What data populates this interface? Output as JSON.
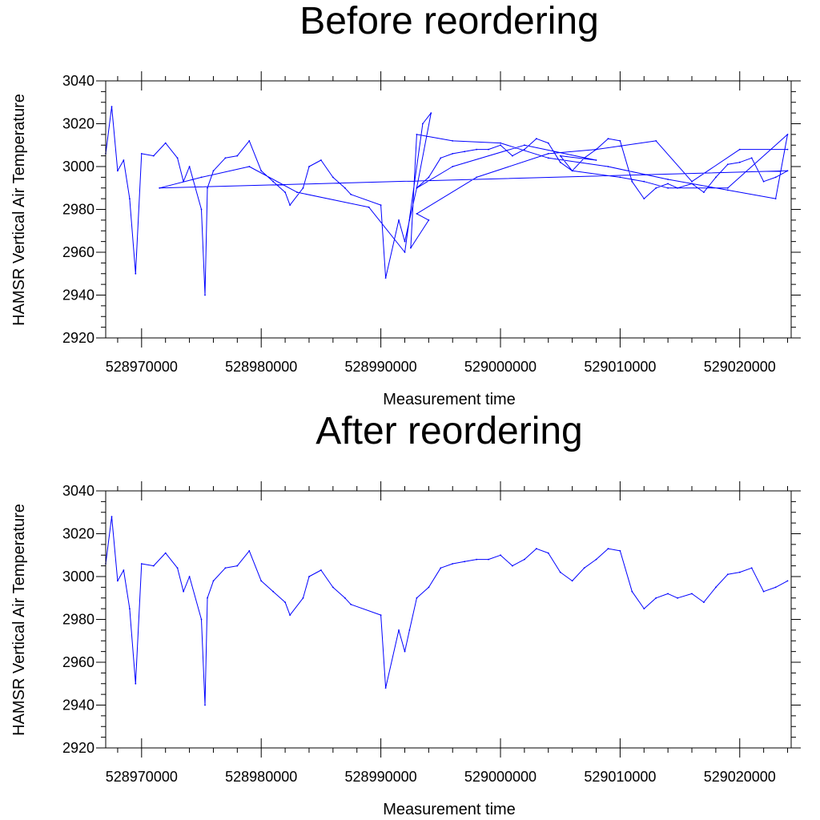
{
  "colors": {
    "series": "#0000ff",
    "axis": "#000000",
    "background": "#ffffff"
  },
  "chart_data": [
    {
      "type": "line",
      "title": "Before reordering",
      "xlabel": "Measurement time",
      "ylabel": "HAMSR Vertical Air Temperature",
      "xlim": [
        528967000,
        529024300
      ],
      "ylim": [
        2920,
        3040
      ],
      "x_ticks": [
        528970000,
        528980000,
        528990000,
        529000000,
        529010000,
        529020000
      ],
      "x_tick_labels": [
        "528970000",
        "528980000",
        "528990000",
        "529000000",
        "529010000",
        "529020000"
      ],
      "y_ticks": [
        2920,
        2940,
        2960,
        2980,
        3000,
        3020,
        3040
      ],
      "y_tick_labels": [
        "2920",
        "2940",
        "2960",
        "2980",
        "3000",
        "3020",
        "3040"
      ],
      "grid": false,
      "series": [
        {
          "order": "unsorted",
          "x": [
            528967000,
            528967500,
            528968000,
            528968500,
            528969000,
            528969500,
            528970000,
            528971000,
            528972000,
            528973000,
            528973500,
            528974000,
            528975000,
            528975300,
            528975500,
            528976000,
            528977000,
            528978000,
            528979000,
            528980000,
            528981000,
            528982000,
            528982400,
            528983500,
            528984000,
            528985000,
            528986000,
            528987000,
            528987500,
            528990000,
            528990400,
            528991500,
            528992000,
            528992400,
            528993000,
            528994000,
            528995000,
            528996000,
            528997000,
            528998000,
            528999000,
            529000000,
            529001000,
            529002000,
            529003000,
            529004000,
            529005000,
            529006000,
            529007000,
            529008000,
            529009000,
            529010000,
            529011000,
            529012000,
            529013000,
            529014000,
            529014800,
            529016000,
            529017000,
            529018000,
            529019000,
            529020000,
            529021000,
            529022000,
            529023000,
            529024000,
            528971500,
            528975000,
            528979000,
            528983000,
            528989000,
            528992000,
            528993500,
            528994200,
            528993000,
            528996000,
            529002000,
            529008000,
            529005000,
            529006000,
            529010000,
            529012000,
            529014000,
            529019000,
            529024000,
            529023000,
            529019000,
            529014000,
            529009000,
            529004000,
            529000000,
            528996000,
            528993000,
            528992500,
            528994000,
            528993000,
            528998000,
            529004000,
            529008000,
            529013000,
            529016000,
            529020000,
            529024000
          ],
          "y": [
            3006,
            3028,
            2998,
            3003,
            2985,
            2950,
            3006,
            3005,
            3011,
            3004,
            2993,
            3000,
            2980,
            2940,
            2990,
            2998,
            3004,
            3005,
            3012,
            2998,
            2993,
            2988,
            2982,
            2990,
            3000,
            3003,
            2995,
            2990,
            2987,
            2982,
            2948,
            2975,
            2965,
            2975,
            2990,
            2995,
            3004,
            3006,
            3007,
            3008,
            3008,
            3010,
            3005,
            3008,
            3013,
            3011,
            3002,
            2998,
            3004,
            3008,
            3013,
            3012,
            2993,
            2985,
            2990,
            2992,
            2990,
            2992,
            2988,
            2995,
            3001,
            3002,
            3004,
            2993,
            2995,
            2998,
            2990,
            2995,
            3000,
            2988,
            2981,
            2960,
            3020,
            3025,
            2990,
            3000,
            3010,
            3003,
            3005,
            2998,
            2995,
            2993,
            2990,
            2990,
            3015,
            2985,
            2989,
            2994,
            3000,
            3004,
            3011,
            3012,
            3015,
            2962,
            2975,
            2978,
            2995,
            3006,
            3008,
            3012,
            2993,
            3008,
            3008
          ]
        }
      ]
    },
    {
      "type": "line",
      "title": "After reordering",
      "xlabel": "Measurement time",
      "ylabel": "HAMSR Vertical Air Temperature",
      "xlim": [
        528967000,
        529024300
      ],
      "ylim": [
        2920,
        3040
      ],
      "x_ticks": [
        528970000,
        528980000,
        528990000,
        529000000,
        529010000,
        529020000
      ],
      "x_tick_labels": [
        "528970000",
        "528980000",
        "528990000",
        "529000000",
        "529010000",
        "529020000"
      ],
      "y_ticks": [
        2920,
        2940,
        2960,
        2980,
        3000,
        3020,
        3040
      ],
      "y_tick_labels": [
        "2920",
        "2940",
        "2960",
        "2980",
        "3000",
        "3020",
        "3040"
      ],
      "grid": false,
      "series": [
        {
          "order": "sorted",
          "x": [
            528967000,
            528967500,
            528968000,
            528968500,
            528969000,
            528969500,
            528970000,
            528971000,
            528972000,
            528973000,
            528973500,
            528974000,
            528975000,
            528975300,
            528975500,
            528976000,
            528977000,
            528978000,
            528979000,
            528980000,
            528981000,
            528982000,
            528982400,
            528983500,
            528984000,
            528985000,
            528986000,
            528987000,
            528987500,
            528990000,
            528990400,
            528991500,
            528992000,
            528992400,
            528993000,
            528994000,
            528995000,
            528996000,
            528997000,
            528998000,
            528999000,
            529000000,
            529001000,
            529002000,
            529003000,
            529004000,
            529005000,
            529006000,
            529007000,
            529008000,
            529009000,
            529010000,
            529011000,
            529012000,
            529013000,
            529014000,
            529014800,
            529016000,
            529017000,
            529018000,
            529019000,
            529020000,
            529021000,
            529022000,
            529023000,
            529024000
          ],
          "y": [
            3006,
            3028,
            2998,
            3003,
            2985,
            2950,
            3006,
            3005,
            3011,
            3004,
            2993,
            3000,
            2980,
            2940,
            2990,
            2998,
            3004,
            3005,
            3012,
            2998,
            2993,
            2988,
            2982,
            2990,
            3000,
            3003,
            2995,
            2990,
            2987,
            2982,
            2948,
            2975,
            2965,
            2975,
            2990,
            2995,
            3004,
            3006,
            3007,
            3008,
            3008,
            3010,
            3005,
            3008,
            3013,
            3011,
            3002,
            2998,
            3004,
            3008,
            3013,
            3012,
            2993,
            2985,
            2990,
            2992,
            2990,
            2992,
            2988,
            2995,
            3001,
            3002,
            3004,
            2993,
            2995,
            2998
          ]
        }
      ]
    }
  ]
}
